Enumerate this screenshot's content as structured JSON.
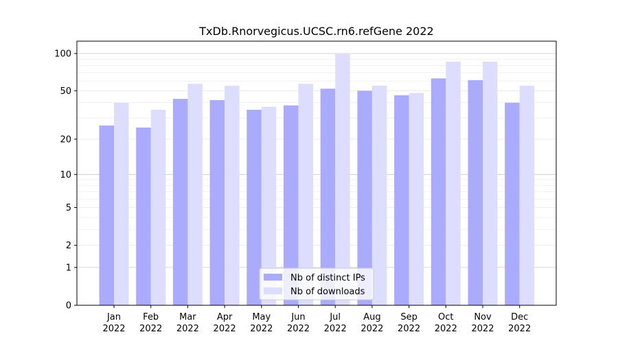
{
  "chart_data": {
    "type": "bar",
    "title": "TxDb.Rnorvegicus.UCSC.rn6.refGene 2022",
    "xlabel": "",
    "ylabel": "",
    "y_scale": "log1p",
    "ylim": [
      0,
      100
    ],
    "y_ticks": [
      0,
      1,
      2,
      5,
      10,
      20,
      50,
      100
    ],
    "grid": "horizontal",
    "legend_position": "bottom-center",
    "categories": [
      [
        "Jan",
        "2022"
      ],
      [
        "Feb",
        "2022"
      ],
      [
        "Mar",
        "2022"
      ],
      [
        "Apr",
        "2022"
      ],
      [
        "May",
        "2022"
      ],
      [
        "Jun",
        "2022"
      ],
      [
        "Jul",
        "2022"
      ],
      [
        "Aug",
        "2022"
      ],
      [
        "Sep",
        "2022"
      ],
      [
        "Oct",
        "2022"
      ],
      [
        "Nov",
        "2022"
      ],
      [
        "Dec",
        "2022"
      ]
    ],
    "series": [
      {
        "name": "Nb of distinct IPs",
        "color": "#aaaaff",
        "values": [
          26,
          25,
          43,
          42,
          35,
          38,
          52,
          50,
          46,
          63,
          61,
          40
        ]
      },
      {
        "name": "Nb of downloads",
        "color": "#ddddff",
        "values": [
          40,
          35,
          57,
          55,
          37,
          57,
          99,
          55,
          48,
          86,
          86,
          55
        ]
      }
    ]
  }
}
